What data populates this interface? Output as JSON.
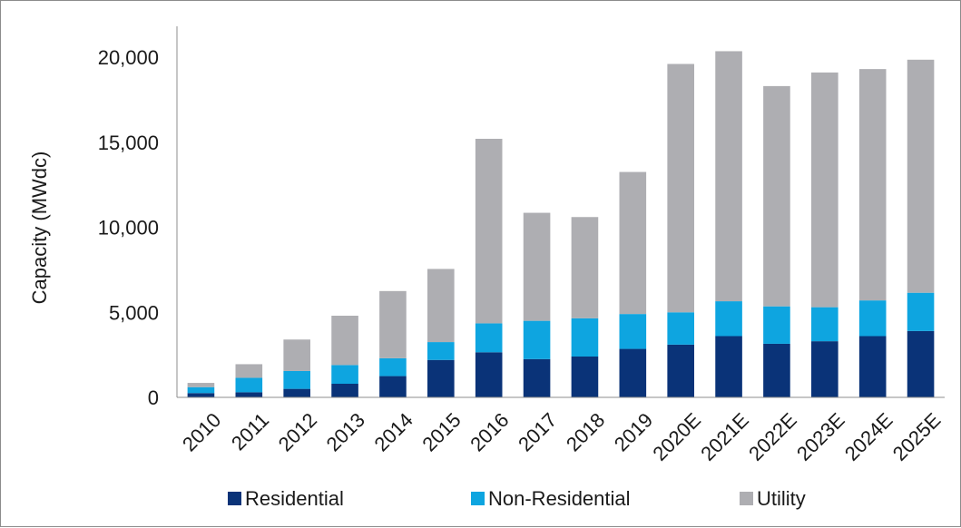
{
  "chart_data": {
    "type": "bar",
    "stacked": true,
    "title": "",
    "xlabel": "",
    "ylabel": "Capacity (MWdc)",
    "ylim": [
      0,
      20000
    ],
    "yticks": [
      0,
      5000,
      10000,
      15000,
      20000
    ],
    "ytick_labels": [
      "0",
      "5,000",
      "10,000",
      "15,000",
      "20,000"
    ],
    "grid": false,
    "legend_position": "bottom",
    "categories": [
      "2010",
      "2011",
      "2012",
      "2013",
      "2014",
      "2015",
      "2016",
      "2017",
      "2018",
      "2019",
      "2020E",
      "2021E",
      "2022E",
      "2023E",
      "2024E",
      "2025E"
    ],
    "series": [
      {
        "name": "Residential",
        "color": "#0a3378",
        "values": [
          250,
          300,
          500,
          800,
          1250,
          2200,
          2650,
          2250,
          2400,
          2850,
          3100,
          3600,
          3150,
          3300,
          3600,
          3900
        ]
      },
      {
        "name": "Non-Residential",
        "color": "#0ea5e0",
        "values": [
          350,
          850,
          1050,
          1100,
          1050,
          1050,
          1700,
          2250,
          2250,
          2050,
          1900,
          2050,
          2200,
          2000,
          2100,
          2250
        ]
      },
      {
        "name": "Utility",
        "color": "#aeaeb2",
        "values": [
          250,
          800,
          1850,
          2900,
          3950,
          4300,
          10850,
          6350,
          5950,
          8350,
          14600,
          14700,
          12950,
          13800,
          13600,
          13700
        ]
      }
    ]
  }
}
